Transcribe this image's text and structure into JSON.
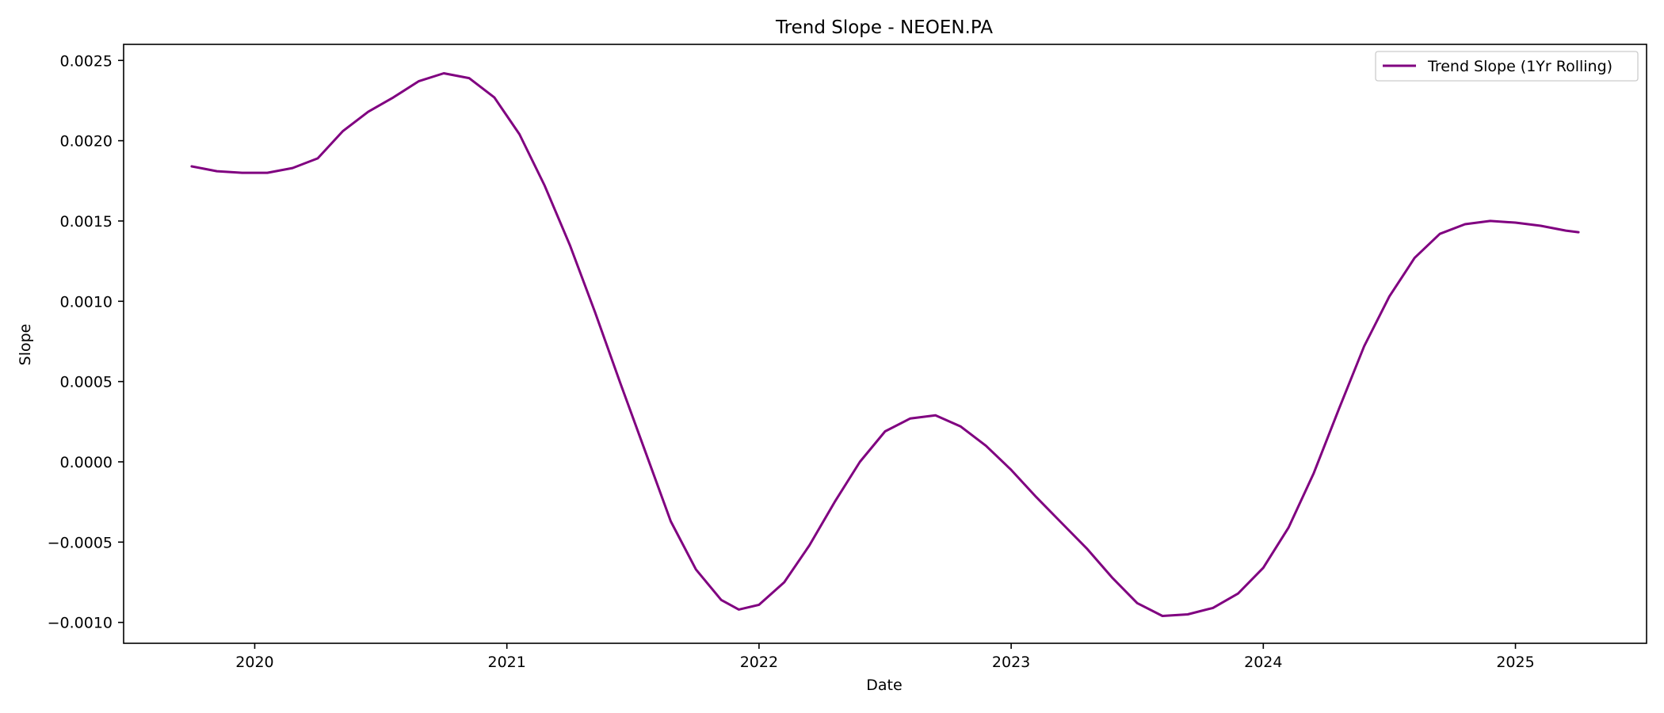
{
  "chart_data": {
    "type": "line",
    "title": "Trend Slope - NEOEN.PA",
    "xlabel": "Date",
    "ylabel": "Slope",
    "xlim": [
      2019.48,
      2025.52
    ],
    "ylim": [
      -0.00113,
      0.0026
    ],
    "xticks": [
      {
        "value": 2020,
        "label": "2020"
      },
      {
        "value": 2021,
        "label": "2021"
      },
      {
        "value": 2022,
        "label": "2022"
      },
      {
        "value": 2023,
        "label": "2023"
      },
      {
        "value": 2024,
        "label": "2024"
      },
      {
        "value": 2025,
        "label": "2025"
      }
    ],
    "yticks": [
      {
        "value": 0.0025,
        "label": "0.0025"
      },
      {
        "value": 0.002,
        "label": "0.0020"
      },
      {
        "value": 0.0015,
        "label": "0.0015"
      },
      {
        "value": 0.001,
        "label": "0.0010"
      },
      {
        "value": 0.0005,
        "label": "0.0005"
      },
      {
        "value": 0.0,
        "label": "0.0000"
      },
      {
        "value": -0.0005,
        "label": "−0.0005"
      },
      {
        "value": -0.001,
        "label": "−0.0010"
      }
    ],
    "grid": false,
    "legend": {
      "position": "top-right"
    },
    "series": [
      {
        "name": "Trend Slope (1Yr Rolling)",
        "color": "#800080",
        "points": [
          [
            2019.75,
            0.00184
          ],
          [
            2019.85,
            0.00181
          ],
          [
            2019.95,
            0.0018
          ],
          [
            2020.05,
            0.0018
          ],
          [
            2020.15,
            0.00183
          ],
          [
            2020.25,
            0.00189
          ],
          [
            2020.35,
            0.00206
          ],
          [
            2020.45,
            0.00218
          ],
          [
            2020.55,
            0.00227
          ],
          [
            2020.65,
            0.00237
          ],
          [
            2020.75,
            0.00242
          ],
          [
            2020.85,
            0.00239
          ],
          [
            2020.95,
            0.00227
          ],
          [
            2021.05,
            0.00204
          ],
          [
            2021.15,
            0.00172
          ],
          [
            2021.25,
            0.00135
          ],
          [
            2021.35,
            0.00093
          ],
          [
            2021.45,
            0.00049
          ],
          [
            2021.55,
            6e-05
          ],
          [
            2021.65,
            -0.00037
          ],
          [
            2021.75,
            -0.00067
          ],
          [
            2021.85,
            -0.00086
          ],
          [
            2021.92,
            -0.00092
          ],
          [
            2022.0,
            -0.00089
          ],
          [
            2022.1,
            -0.00075
          ],
          [
            2022.2,
            -0.00052
          ],
          [
            2022.3,
            -0.00025
          ],
          [
            2022.4,
            0.0
          ],
          [
            2022.5,
            0.00019
          ],
          [
            2022.6,
            0.00027
          ],
          [
            2022.7,
            0.00029
          ],
          [
            2022.8,
            0.00022
          ],
          [
            2022.9,
            0.0001
          ],
          [
            2023.0,
            -5e-05
          ],
          [
            2023.1,
            -0.00022
          ],
          [
            2023.2,
            -0.00038
          ],
          [
            2023.3,
            -0.00054
          ],
          [
            2023.4,
            -0.00072
          ],
          [
            2023.5,
            -0.00088
          ],
          [
            2023.6,
            -0.00096
          ],
          [
            2023.7,
            -0.00095
          ],
          [
            2023.8,
            -0.00091
          ],
          [
            2023.9,
            -0.00082
          ],
          [
            2024.0,
            -0.00066
          ],
          [
            2024.1,
            -0.00041
          ],
          [
            2024.2,
            -7e-05
          ],
          [
            2024.3,
            0.00033
          ],
          [
            2024.4,
            0.00072
          ],
          [
            2024.5,
            0.00103
          ],
          [
            2024.6,
            0.00127
          ],
          [
            2024.7,
            0.00142
          ],
          [
            2024.8,
            0.00148
          ],
          [
            2024.9,
            0.0015
          ],
          [
            2025.0,
            0.00149
          ],
          [
            2025.1,
            0.00147
          ],
          [
            2025.2,
            0.00144
          ],
          [
            2025.25,
            0.00143
          ]
        ]
      }
    ]
  }
}
